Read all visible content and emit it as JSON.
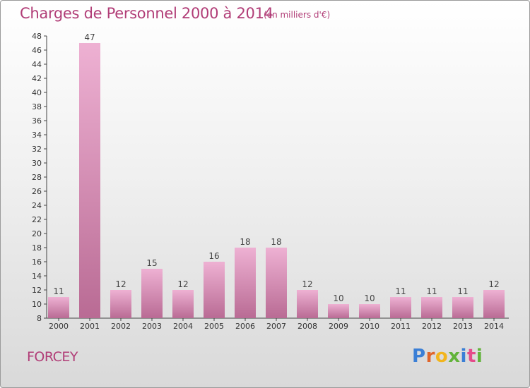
{
  "header": {
    "title": "Charges de Personnel 2000 à 2014",
    "subtitle": "(en milliers d'€)"
  },
  "footer": {
    "commune": "FORCEY",
    "logo_text": "Proxiti",
    "logo_colors": [
      "#3b7fd6",
      "#e0652b",
      "#f2b51d",
      "#62b33a",
      "#3b7fd6",
      "#e54b8a",
      "#62b33a"
    ]
  },
  "colors": {
    "bar_light": "#eeb1d3",
    "bar_dark": "#b96b94",
    "title": "#b13d77",
    "axis": "#444444"
  },
  "chart_data": {
    "type": "bar",
    "categories": [
      "2000",
      "2001",
      "2002",
      "2003",
      "2004",
      "2005",
      "2006",
      "2007",
      "2008",
      "2009",
      "2010",
      "2011",
      "2012",
      "2013",
      "2014"
    ],
    "values": [
      11,
      47,
      12,
      15,
      12,
      16,
      18,
      18,
      12,
      10,
      10,
      11,
      11,
      11,
      12
    ],
    "data_labels": [
      "11",
      "47",
      "12",
      "15",
      "12",
      "16",
      "18",
      "18",
      "12",
      "10",
      "10",
      "11",
      "11",
      "11",
      "12"
    ],
    "ylim": [
      8,
      48
    ],
    "yticks": [
      8,
      10,
      12,
      14,
      16,
      18,
      20,
      22,
      24,
      26,
      28,
      30,
      32,
      34,
      36,
      38,
      40,
      42,
      44,
      46,
      48
    ],
    "grid": false,
    "xlabel": "",
    "ylabel": ""
  }
}
